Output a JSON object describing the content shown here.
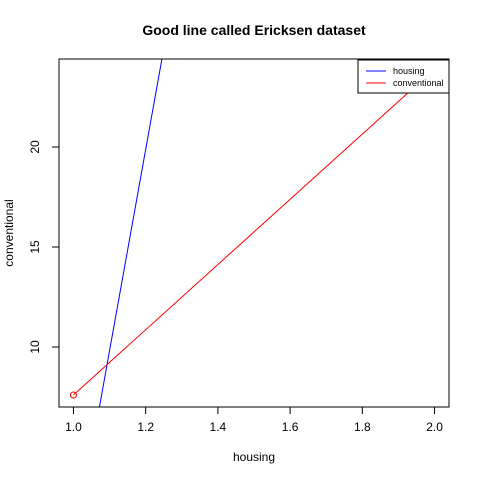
{
  "chart_data": {
    "type": "line",
    "title": "Good line called Ericksen dataset",
    "xlabel": "housing",
    "ylabel": "conventional",
    "xlim": [
      0.96,
      2.04
    ],
    "ylim": [
      7.0,
      24.4
    ],
    "x_ticks": [
      1.0,
      1.2,
      1.4,
      1.6,
      1.8,
      2.0
    ],
    "x_tick_labels": [
      "1.0",
      "1.2",
      "1.4",
      "1.6",
      "1.8",
      "2.0"
    ],
    "y_ticks": [
      10,
      15,
      20
    ],
    "y_tick_labels": [
      "10",
      "15",
      "20"
    ],
    "grid": false,
    "legend_position": "top-right",
    "legend": [
      {
        "label": "housing",
        "color": "#0000ff"
      },
      {
        "label": "conventional",
        "color": "#ff0000"
      }
    ],
    "series": [
      {
        "name": "housing",
        "color": "#0000ff",
        "style": "line",
        "points": [
          [
            1.072,
            7.0
          ],
          [
            1.245,
            24.4
          ]
        ]
      },
      {
        "name": "conventional",
        "color": "#ff0000",
        "style": "line",
        "points": [
          [
            1.0,
            7.6
          ],
          [
            1.975,
            23.5
          ]
        ]
      }
    ],
    "markers": [
      {
        "x": 1.0,
        "y": 7.6,
        "color": "#ff0000",
        "shape": "open-circle"
      }
    ]
  }
}
